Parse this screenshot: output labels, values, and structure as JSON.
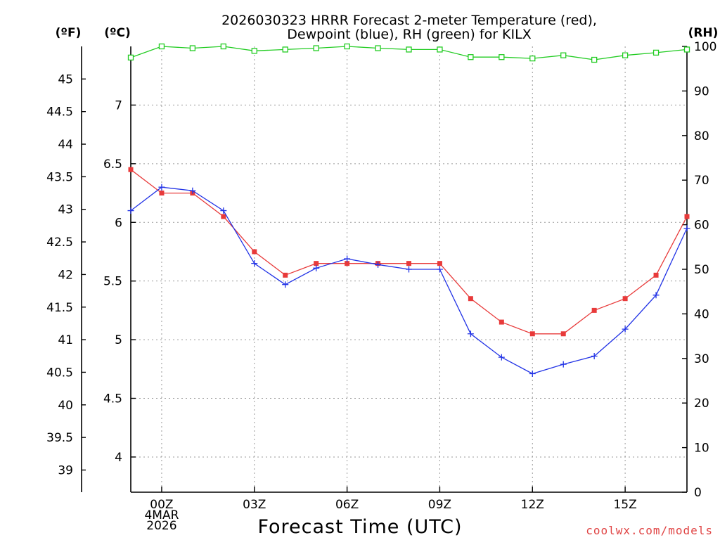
{
  "chart_data": {
    "type": "line",
    "title": [
      "2026030323 HRRR Forecast 2-meter Temperature (red),",
      "Dewpoint (blue), RH (green) for KILX"
    ],
    "xlabel": "Forecast Time (UTC)",
    "watermark": "coolwx.com/models",
    "units": {
      "left_f": "(ºF)",
      "left_c": "(ºC)",
      "right": "(RH)"
    },
    "x": [
      -1,
      0,
      1,
      2,
      3,
      4,
      5,
      6,
      7,
      8,
      9,
      10,
      11,
      12,
      13,
      14,
      15,
      16,
      17
    ],
    "x_ticks": [
      {
        "x": 0,
        "lines": [
          "00Z",
          "4MAR",
          "2026"
        ]
      },
      {
        "x": 3,
        "lines": [
          "03Z"
        ]
      },
      {
        "x": 6,
        "lines": [
          "06Z"
        ]
      },
      {
        "x": 9,
        "lines": [
          "09Z"
        ]
      },
      {
        "x": 12,
        "lines": [
          "12Z"
        ]
      },
      {
        "x": 15,
        "lines": [
          "15Z"
        ]
      }
    ],
    "xlim": [
      -1,
      17
    ],
    "celsius_ticks": [
      "4",
      "4.5",
      "5",
      "5.5",
      "6",
      "6.5",
      "7"
    ],
    "celsius_lim": [
      3.7,
      7.5
    ],
    "fahrenheit_ticks": [
      "39",
      "39.5",
      "40",
      "40.5",
      "41",
      "41.5",
      "42",
      "42.5",
      "43",
      "43.5",
      "44",
      "44.5",
      "45"
    ],
    "rh_ticks": [
      "0",
      "10",
      "20",
      "30",
      "40",
      "50",
      "60",
      "70",
      "80",
      "90",
      "100"
    ],
    "rh_lim": [
      0,
      100
    ],
    "colors": {
      "temperature": "#e83a3a",
      "dewpoint": "#2233e6",
      "rh": "#22cc22",
      "grid": "#9a9a9a",
      "watermark": "#e04444"
    },
    "series": [
      {
        "name": "Temperature",
        "axis": "celsius",
        "marker": "square",
        "values": [
          6.45,
          6.25,
          6.25,
          6.05,
          5.75,
          5.55,
          5.65,
          5.65,
          5.65,
          5.65,
          5.65,
          5.35,
          5.15,
          5.05,
          5.05,
          5.25,
          5.35,
          5.55,
          6.05
        ]
      },
      {
        "name": "Dewpoint",
        "axis": "celsius",
        "marker": "plus",
        "values": [
          6.1,
          6.3,
          6.27,
          6.1,
          5.65,
          5.47,
          5.61,
          5.69,
          5.64,
          5.6,
          5.6,
          5.05,
          4.85,
          4.71,
          4.79,
          4.86,
          5.09,
          5.38,
          5.95
        ]
      },
      {
        "name": "RH",
        "axis": "rh",
        "marker": "open-square",
        "values": [
          97.5,
          100,
          99.6,
          100,
          99,
          99.3,
          99.6,
          100,
          99.6,
          99.3,
          99.3,
          97.6,
          97.6,
          97.3,
          98,
          97,
          98,
          98.6,
          99.3
        ]
      }
    ]
  }
}
